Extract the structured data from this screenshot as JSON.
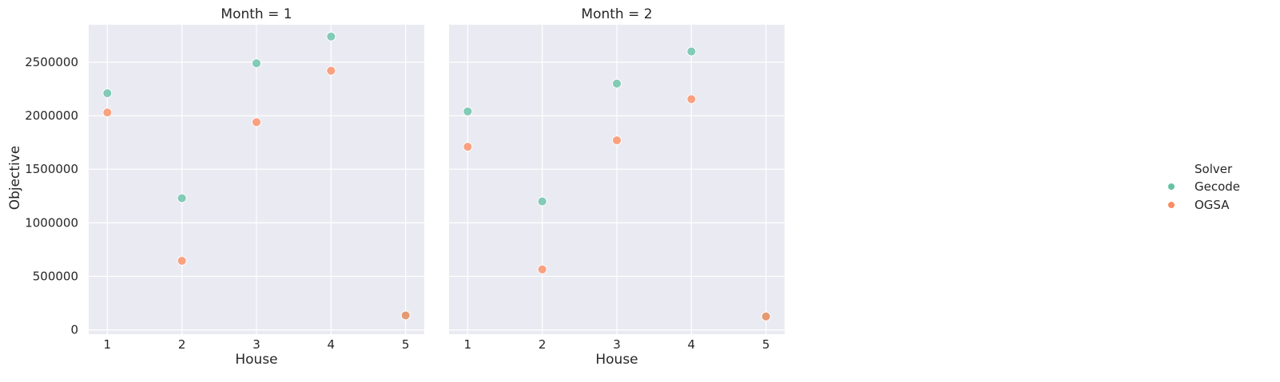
{
  "chart_data": {
    "type": "scatter",
    "xlabel": "House",
    "ylabel": "Objective",
    "x_ticks": [
      1,
      2,
      3,
      4,
      5
    ],
    "x_tick_labels": [
      "1",
      "2",
      "3",
      "4",
      "5"
    ],
    "xlim": [
      0.75,
      5.25
    ],
    "y_ticks": [
      0,
      500000,
      1000000,
      1500000,
      2000000,
      2500000
    ],
    "y_tick_labels": [
      "0",
      "500000",
      "1000000",
      "1500000",
      "2000000",
      "2500000"
    ],
    "ylim": [
      -40000,
      2850000
    ],
    "legend": {
      "title": "Solver",
      "entries": [
        {
          "label": "Gecode",
          "color": "#66c2a5"
        },
        {
          "label": "OGSA",
          "color": "#fc8d62"
        }
      ]
    },
    "panels": [
      {
        "title": "Month = 1",
        "series": [
          {
            "name": "Gecode",
            "color": "#66c2a5",
            "x": [
              1,
              2,
              3,
              4,
              5
            ],
            "y": [
              2210000,
              1230000,
              2490000,
              2740000,
              135000
            ]
          },
          {
            "name": "OGSA",
            "color": "#fc8d62",
            "x": [
              1,
              2,
              3,
              4,
              5
            ],
            "y": [
              2030000,
              645000,
              1940000,
              2420000,
              135000
            ]
          }
        ]
      },
      {
        "title": "Month = 2",
        "series": [
          {
            "name": "Gecode",
            "color": "#66c2a5",
            "x": [
              1,
              2,
              3,
              4,
              5
            ],
            "y": [
              2040000,
              1200000,
              2300000,
              2600000,
              125000
            ]
          },
          {
            "name": "OGSA",
            "color": "#fc8d62",
            "x": [
              1,
              2,
              3,
              4,
              5
            ],
            "y": [
              1710000,
              565000,
              1770000,
              2155000,
              125000
            ]
          }
        ]
      }
    ]
  }
}
